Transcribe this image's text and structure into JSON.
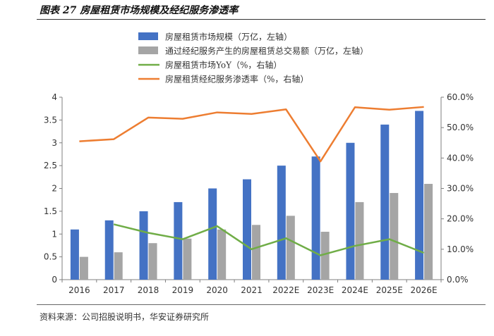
{
  "header": {
    "figure_label": "图表 27",
    "figure_title": "房屋租赁市场规模及经纪服务渗透率"
  },
  "footer": {
    "source": "资料来源：公司招股说明书，华安证券研究所"
  },
  "chart_data": {
    "type": "bar",
    "title": "房屋租赁市场规模及经纪服务渗透率",
    "categories": [
      "2016",
      "2017",
      "2018",
      "2019",
      "2020",
      "2021",
      "2022E",
      "2023E",
      "2024E",
      "2025E",
      "2026E"
    ],
    "y_left": {
      "ylim": [
        0,
        4
      ],
      "ticks": [
        "0",
        "0.5",
        "1",
        "1.5",
        "2",
        "2.5",
        "3",
        "3.5",
        "4"
      ]
    },
    "y_right": {
      "ylim": [
        0,
        60
      ],
      "ticks": [
        "0.0%",
        "10.0%",
        "20.0%",
        "30.0%",
        "40.0%",
        "50.0%",
        "60.0%"
      ]
    },
    "series": [
      {
        "name": "房屋租赁市场规模（万亿，左轴）",
        "type": "bar",
        "axis": "left",
        "color": "#4472C4",
        "values": [
          1.1,
          1.3,
          1.5,
          1.7,
          2.0,
          2.2,
          2.5,
          2.7,
          3.0,
          3.4,
          3.7
        ]
      },
      {
        "name": "通过经纪服务产生的房屋租赁总交易额（万亿，左轴）",
        "type": "bar",
        "axis": "left",
        "color": "#A5A5A5",
        "values": [
          0.5,
          0.6,
          0.8,
          0.9,
          1.1,
          1.2,
          1.4,
          1.05,
          1.7,
          1.9,
          2.1
        ]
      },
      {
        "name": "房屋租赁市场YoY（%，右轴）",
        "type": "line",
        "axis": "right",
        "color": "#70AD47",
        "values": [
          null,
          18.2,
          15.4,
          13.3,
          17.6,
          10.0,
          13.6,
          8.0,
          11.1,
          13.3,
          8.8
        ]
      },
      {
        "name": "房屋租赁经纪服务渗透率（%，右轴）",
        "type": "line",
        "axis": "right",
        "color": "#ED7D31",
        "values": [
          45.5,
          46.2,
          53.3,
          52.9,
          55.0,
          54.5,
          56.0,
          38.9,
          56.7,
          55.9,
          56.8
        ]
      }
    ],
    "legend": "top-left",
    "grid": false
  }
}
